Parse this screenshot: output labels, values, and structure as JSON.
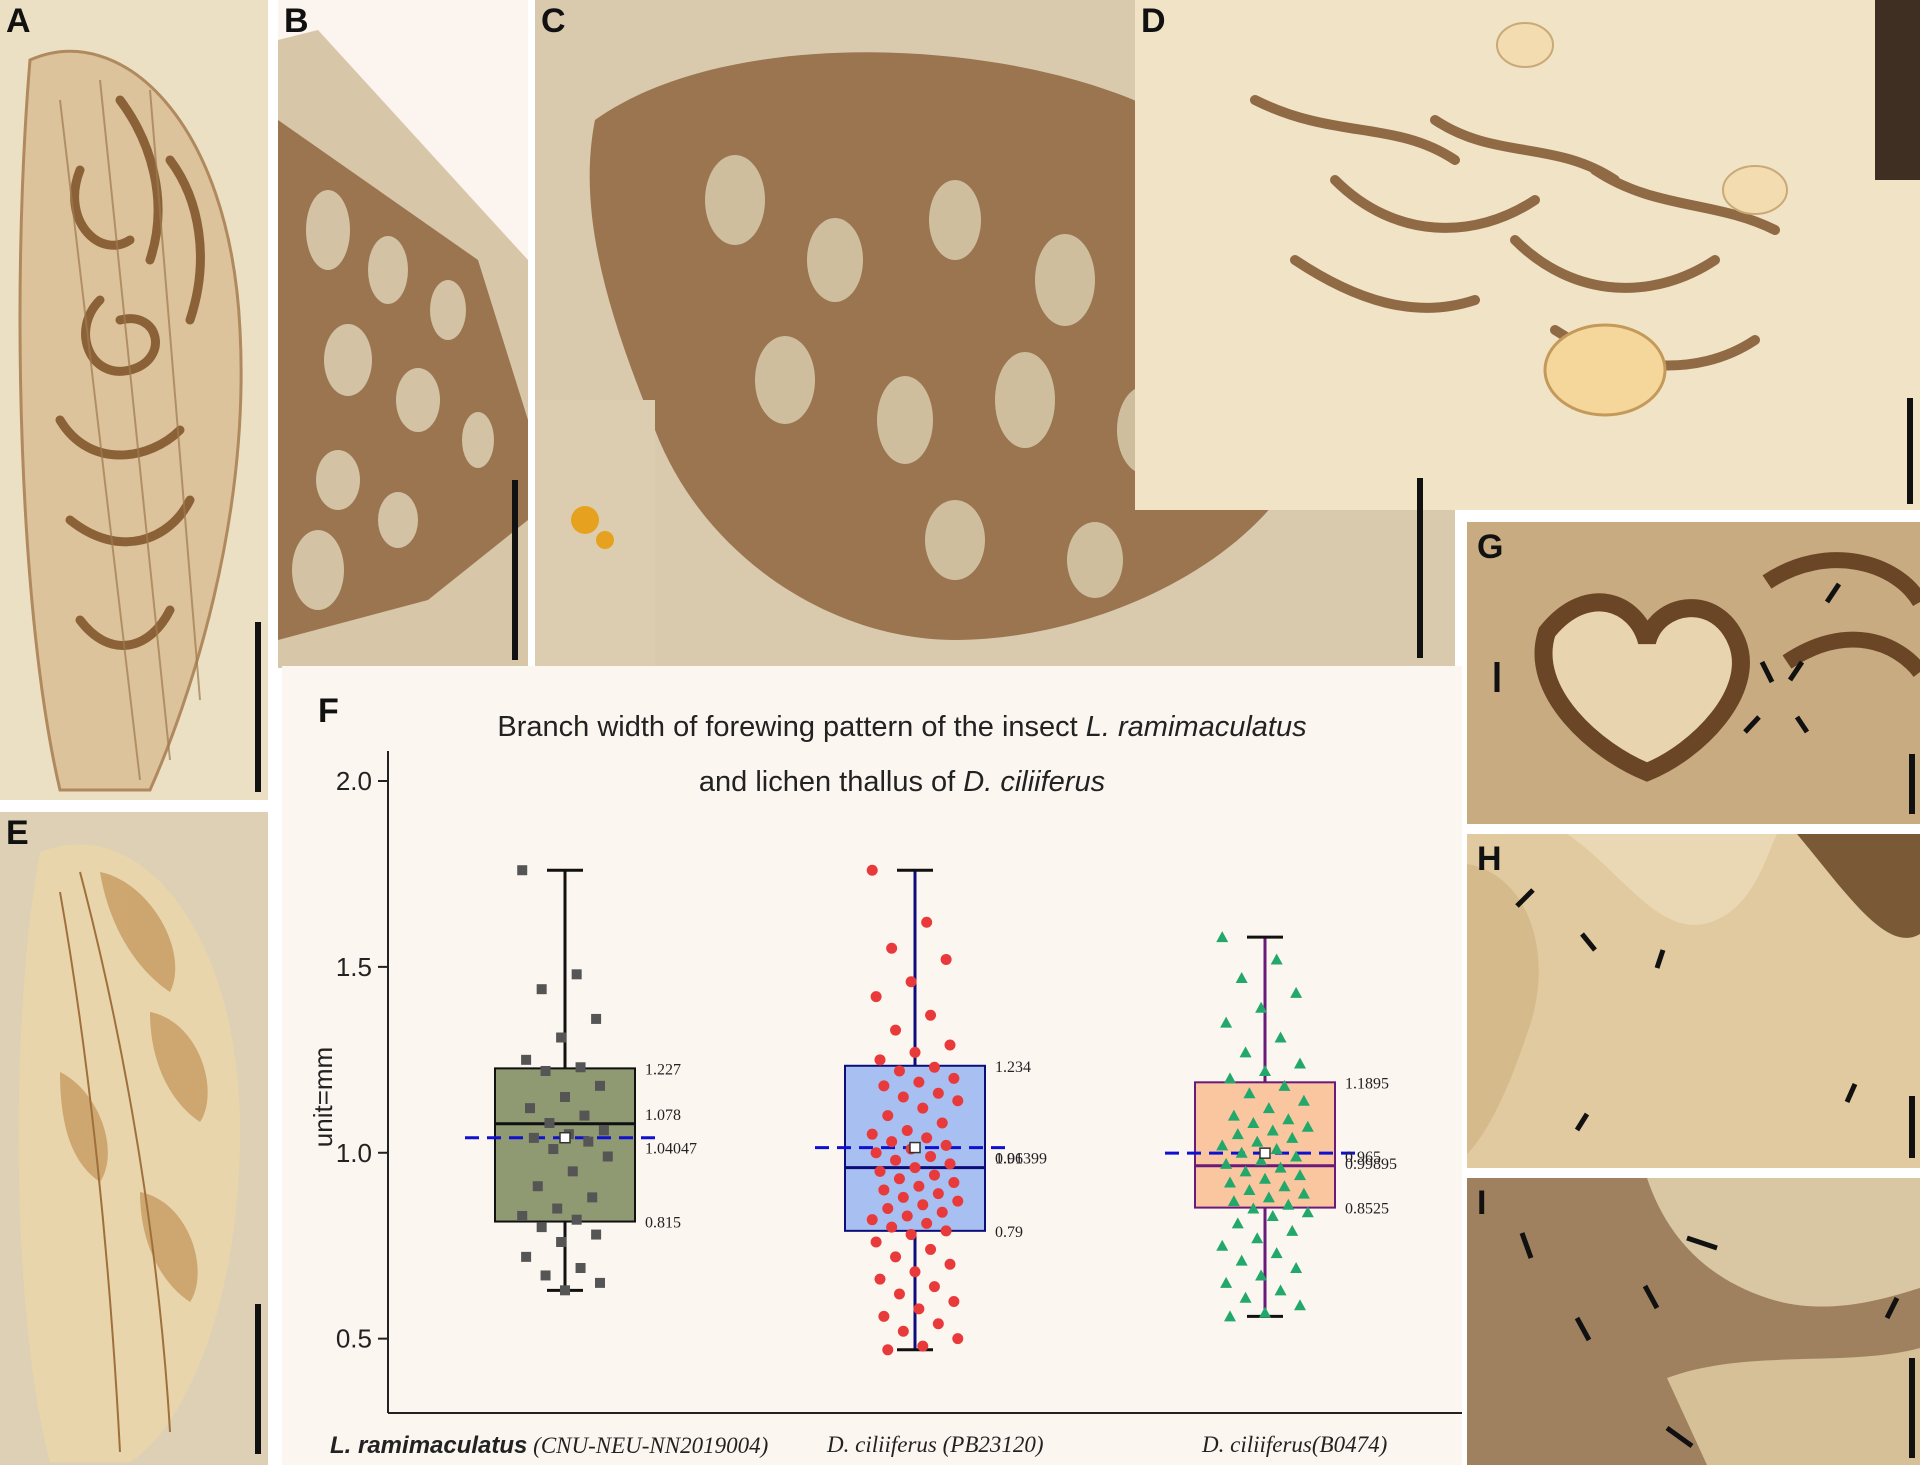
{
  "panels": {
    "A": {
      "label": "A"
    },
    "B": {
      "label": "B"
    },
    "C": {
      "label": "C"
    },
    "D": {
      "label": "D"
    },
    "E": {
      "label": "E"
    },
    "F": {
      "label": "F"
    },
    "G": {
      "label": "G"
    },
    "H": {
      "label": "H"
    },
    "I": {
      "label": "I"
    }
  },
  "colors": {
    "stone": "#e6d3b0",
    "fossil_brown": "#8c6440",
    "dark_fossil": "#5e4128",
    "chart_bg": "#fcf6f1",
    "mean_line": "#1010d0"
  },
  "chart_data": {
    "type": "box",
    "title_line1": {
      "prefix": "Branch width of forewing pattern of the insect ",
      "italic": "L. ramimaculatus"
    },
    "title_line2": {
      "prefix": "and lichen thallus of ",
      "italic": "D. ciliiferus"
    },
    "ylabel": "unit=mm",
    "ylim": [
      0.3,
      2.0
    ],
    "yticks": [
      "0.5",
      "1.0",
      "1.5",
      "2.0"
    ],
    "series": [
      {
        "name_bold": "L. ramimaculatus",
        "name_rest": " (CNU-NEU-NN2019004)",
        "q1": 0.815,
        "median": 1.078,
        "q3": 1.227,
        "mean": 1.04047,
        "whisker_low": 0.63,
        "whisker_high": 1.76,
        "labels": {
          "q3": "1.227",
          "median": "1.078",
          "mean": "1.04047",
          "q1": "0.815"
        },
        "box_color": "#8f9a72",
        "line_color": "#111111",
        "marker": "square",
        "point_color": "#555555",
        "points": [
          1.76,
          1.48,
          1.44,
          1.36,
          1.31,
          1.25,
          1.23,
          1.22,
          1.18,
          1.15,
          1.12,
          1.1,
          1.08,
          1.06,
          1.05,
          1.04,
          1.03,
          1.01,
          0.99,
          0.95,
          0.91,
          0.88,
          0.85,
          0.83,
          0.82,
          0.8,
          0.78,
          0.76,
          0.72,
          0.69,
          0.67,
          0.65,
          0.63
        ]
      },
      {
        "name_bold": "",
        "name_rest": "D. ciliiferus (PB23120)",
        "q1": 0.79,
        "median": 0.96,
        "q3": 1.234,
        "mean": 1.01399,
        "whisker_low": 0.47,
        "whisker_high": 1.76,
        "labels": {
          "q3": "1.234",
          "median": "0.96",
          "mean": "1.01399",
          "q1": "0.79"
        },
        "box_color": "#a8bff2",
        "line_color": "#0d0d7a",
        "marker": "circle",
        "point_color": "#e83a3a",
        "points": [
          1.76,
          1.62,
          1.55,
          1.52,
          1.46,
          1.42,
          1.37,
          1.33,
          1.29,
          1.27,
          1.25,
          1.23,
          1.22,
          1.2,
          1.19,
          1.18,
          1.16,
          1.15,
          1.14,
          1.12,
          1.1,
          1.08,
          1.06,
          1.05,
          1.04,
          1.03,
          1.02,
          1.01,
          1.0,
          0.99,
          0.98,
          0.97,
          0.96,
          0.95,
          0.94,
          0.93,
          0.92,
          0.91,
          0.9,
          0.89,
          0.88,
          0.87,
          0.86,
          0.85,
          0.84,
          0.83,
          0.82,
          0.81,
          0.8,
          0.79,
          0.78,
          0.76,
          0.74,
          0.72,
          0.7,
          0.68,
          0.66,
          0.64,
          0.62,
          0.6,
          0.58,
          0.56,
          0.54,
          0.52,
          0.5,
          0.48,
          0.47
        ]
      },
      {
        "name_bold": "",
        "name_rest": "D. ciliiferus(B0474)",
        "q1": 0.8525,
        "median": 0.965,
        "q3": 1.1895,
        "mean": 0.99895,
        "whisker_low": 0.56,
        "whisker_high": 1.58,
        "labels": {
          "q3": "1.1895",
          "median": "0.965",
          "mean": "0.99895",
          "q1": "0.8525"
        },
        "box_color": "#f9c6a0",
        "line_color": "#6a1a78",
        "marker": "triangle",
        "point_color": "#22a86a",
        "points": [
          1.58,
          1.52,
          1.47,
          1.43,
          1.39,
          1.35,
          1.31,
          1.27,
          1.24,
          1.22,
          1.2,
          1.18,
          1.16,
          1.14,
          1.12,
          1.1,
          1.09,
          1.08,
          1.07,
          1.06,
          1.05,
          1.04,
          1.03,
          1.02,
          1.01,
          1.0,
          0.99,
          0.98,
          0.97,
          0.96,
          0.95,
          0.94,
          0.93,
          0.92,
          0.91,
          0.9,
          0.89,
          0.88,
          0.87,
          0.86,
          0.85,
          0.84,
          0.83,
          0.81,
          0.79,
          0.77,
          0.75,
          0.73,
          0.71,
          0.69,
          0.67,
          0.65,
          0.63,
          0.61,
          0.59,
          0.57,
          0.56
        ]
      }
    ]
  }
}
